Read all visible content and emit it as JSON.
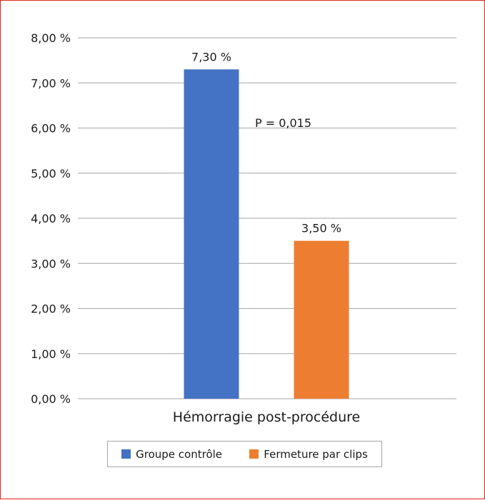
{
  "chart_data": {
    "type": "bar",
    "categories": [
      "Hémorragie post-procédure"
    ],
    "series": [
      {
        "name": "Groupe contrôle",
        "values": [
          7.3
        ],
        "label": "7,30 %",
        "color": "#4472c4"
      },
      {
        "name": "Fermeture par clips",
        "values": [
          3.5
        ],
        "label": "3,50 %",
        "color": "#ed7d31"
      }
    ],
    "ylim": [
      0,
      8
    ],
    "yticks": [
      0,
      1,
      2,
      3,
      4,
      5,
      6,
      7,
      8
    ],
    "ytick_labels": [
      "0,00 %",
      "1,00 %",
      "2,00 %",
      "3,00 %",
      "4,00 %",
      "5,00 %",
      "6,00 %",
      "7,00 %",
      "8,00 %"
    ],
    "annotation": "P = 0,015",
    "grid": true,
    "legend_position": "bottom",
    "title": "",
    "xlabel": "",
    "ylabel": ""
  },
  "colors": {
    "border": "#e2231a",
    "grid": "#a6a6a6"
  }
}
